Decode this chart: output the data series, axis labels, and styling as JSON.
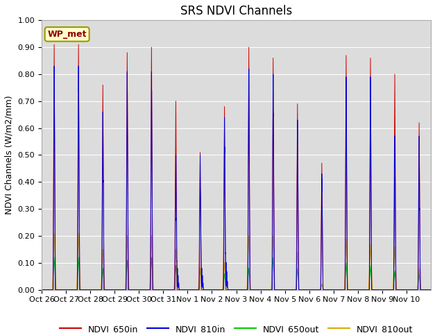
{
  "title": "SRS NDVI Channels",
  "ylabel": "NDVI Channels (W/m2/mm)",
  "ylim": [
    0.0,
    1.0
  ],
  "bg_color": "#dcdcdc",
  "annotation": "WP_met",
  "legend_labels": [
    "NDVI_650in",
    "NDVI_810in",
    "NDVI_650out",
    "NDVI_810out"
  ],
  "line_colors": [
    "#cc0000",
    "#0000dd",
    "#00cc00",
    "#ddaa00"
  ],
  "tick_dates": [
    "Oct 26",
    "Oct 27",
    "Oct 28",
    "Oct 29",
    "Oct 30",
    "Oct 31",
    "Nov 1",
    "Nov 2",
    "Nov 3",
    "Nov 4",
    "Nov 5",
    "Nov 6",
    "Nov 7",
    "Nov 8",
    "Nov 9",
    "Nov 10"
  ],
  "daily_peaks_650in": [
    0.91,
    0.91,
    0.76,
    0.88,
    0.9,
    0.7,
    0.51,
    0.68,
    0.9,
    0.86,
    0.69,
    0.47,
    0.87,
    0.86,
    0.8,
    0.62
  ],
  "daily_peaks_810in": [
    0.83,
    0.83,
    0.66,
    0.81,
    0.81,
    0.5,
    0.5,
    0.64,
    0.82,
    0.8,
    0.63,
    0.43,
    0.79,
    0.79,
    0.57,
    0.57
  ],
  "daily_peaks_650out": [
    0.12,
    0.12,
    0.08,
    0.11,
    0.12,
    0.09,
    0.08,
    0.06,
    0.08,
    0.12,
    0.08,
    0.02,
    0.1,
    0.09,
    0.07,
    0.06
  ],
  "daily_peaks_810out": [
    0.21,
    0.21,
    0.15,
    0.2,
    0.2,
    0.15,
    0.08,
    0.1,
    0.2,
    0.2,
    0.14,
    0.02,
    0.19,
    0.17,
    0.16,
    0.08
  ],
  "title_fontsize": 12,
  "label_fontsize": 9,
  "tick_fontsize": 8
}
